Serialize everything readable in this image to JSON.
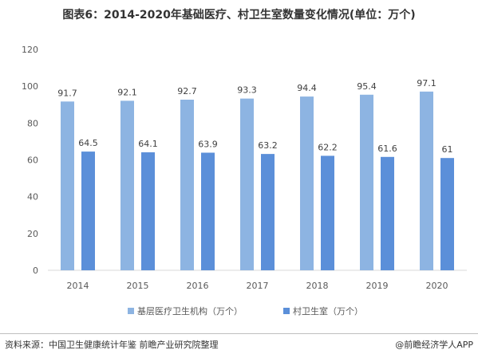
{
  "title": "图表6：2014-2020年基础医疗、村卫生室数量变化情况(单位：万个)",
  "source": "资料来源：中国卫生健康统计年鉴 前瞻产业研究院整理",
  "brand": "@前瞻经济学人APP",
  "chart_data": {
    "type": "bar",
    "categories": [
      "2014",
      "2015",
      "2016",
      "2017",
      "2018",
      "2019",
      "2020"
    ],
    "series": [
      {
        "name": "基层医疗卫生机构（万个）",
        "values": [
          91.7,
          92.1,
          92.7,
          93.3,
          94.4,
          95.4,
          97.1
        ],
        "color": "#8db4e2"
      },
      {
        "name": "村卫生室（万个）",
        "values": [
          64.5,
          64.1,
          63.9,
          63.2,
          62.2,
          61.6,
          61
        ],
        "color": "#5b8fd9"
      }
    ],
    "yticks": [
      0,
      20,
      40,
      60,
      80,
      100,
      120
    ],
    "ylim": [
      0,
      120
    ],
    "grid": false,
    "legend": "bottom"
  }
}
